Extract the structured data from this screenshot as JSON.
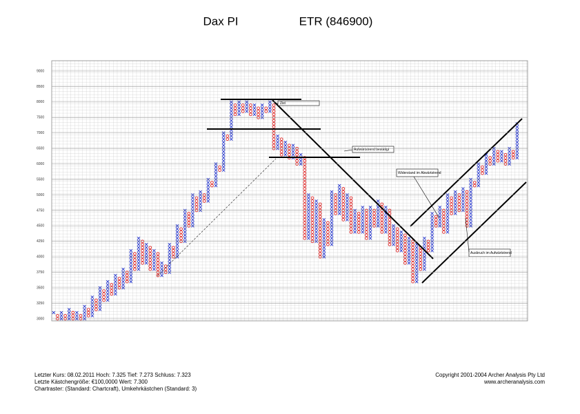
{
  "chart_data": {
    "type": "point-and-figure",
    "title": "Dax PI",
    "subtitle": "ETR (846900)",
    "yticks": [
      9000,
      8500,
      8000,
      7500,
      7000,
      6500,
      6000,
      5500,
      5000,
      4750,
      4500,
      4250,
      4000,
      3750,
      3500,
      3250,
      3000
    ],
    "types": [
      "X",
      "O",
      "X",
      "O",
      "X",
      "O",
      "X",
      "O",
      "X",
      "O",
      "X",
      "O",
      "X",
      "O",
      "X",
      "O",
      "X",
      "O",
      "X",
      "O",
      "X",
      "O",
      "X",
      "O",
      "X",
      "O",
      "X",
      "O",
      "X",
      "O",
      "X",
      "O",
      "X",
      "O",
      "X",
      "O",
      "X",
      "O",
      "X",
      "O",
      "X",
      "O",
      "X",
      "O",
      "X",
      "O",
      "X",
      "O",
      "X",
      "O",
      "X",
      "O",
      "X",
      "O",
      "X",
      "O",
      "X",
      "O",
      "X",
      "O",
      "X",
      "O",
      "X",
      "O",
      "X",
      "O",
      "X",
      "O",
      "X",
      "O",
      "X",
      "O",
      "X",
      "O",
      "X",
      "O",
      "X",
      "O",
      "X",
      "O",
      "X",
      "O",
      "X",
      "O",
      "X",
      "O",
      "X",
      "O",
      "X",
      "O",
      "X",
      "O",
      "X",
      "O",
      "X",
      "O",
      "X",
      "O",
      "X",
      "O",
      "X",
      "O",
      "X",
      "O",
      "X",
      "O",
      "X",
      "O",
      "X",
      "O",
      "X",
      "O",
      "X",
      "O",
      "X",
      "O",
      "X",
      "O",
      "X",
      "O",
      "X"
    ],
    "values": [
      3100,
      3000,
      3100,
      3000,
      3150,
      3000,
      3100,
      3000,
      3200,
      3050,
      3350,
      3150,
      3500,
      3300,
      3600,
      3400,
      3700,
      3500,
      3800,
      3600,
      4100,
      3800,
      4300,
      3900,
      4200,
      3800,
      4100,
      3700,
      3900,
      3750,
      4200,
      4000,
      4500,
      4250,
      4750,
      4500,
      5000,
      4750,
      5100,
      4900,
      5500,
      5300,
      6000,
      5800,
      7000,
      6800,
      8000,
      7600,
      8000,
      7700,
      8000,
      7600,
      7900,
      7500,
      7900,
      7700,
      8000,
      6500,
      6900,
      6300,
      6700,
      6200,
      6600,
      6000,
      6300,
      4300,
      5000,
      4250,
      4900,
      4000,
      4600,
      4200,
      5100,
      4700,
      5300,
      4600,
      5000,
      4400,
      4750,
      4400,
      4800,
      4300,
      4800,
      4500,
      4900,
      4400,
      4800,
      4200,
      4500,
      4100,
      4400,
      3900,
      4300,
      3600,
      4200,
      3800,
      4300,
      4100,
      4700,
      4500,
      4800,
      4400,
      5000,
      4700,
      5100,
      4750,
      5200,
      4500,
      5500,
      5300,
      6000,
      5700,
      6300,
      6000,
      6500,
      6100,
      6400,
      6000,
      6500,
      6200,
      7300
    ],
    "colors": {
      "X": "#2233cc",
      "O": "#dd2222"
    },
    "annotations": [
      "Ziel",
      "Aufwärtstrend bestätigt",
      "Widerstand im Abwärtstrend",
      "Ausbruch im Aufwärtstrend"
    ],
    "footer_left": [
      "Letzter Kurs: 08.02.2011 Hoch: 7.325 Tief: 7.273 Schluss: 7.323",
      "Letzte Kästchengröße: €100,0000 Wert: 7.300",
      "Chartraster: (Standard: Chartcraft), Umkehrkästchen (Standard: 3)"
    ],
    "footer_right": [
      "Copyright 2001-2004 Archer Analysis Pty Ltd",
      "www.archeranalysis.com"
    ]
  }
}
